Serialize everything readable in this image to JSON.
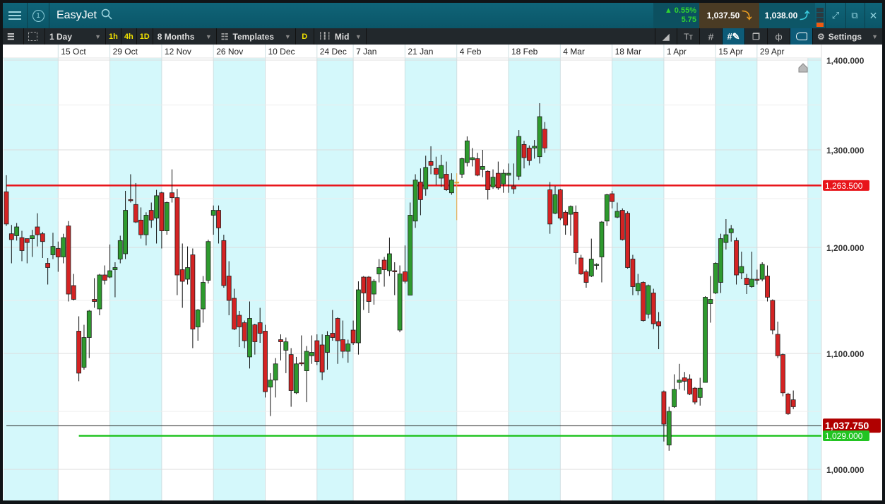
{
  "titlebar": {
    "title": "EasyJet",
    "instrument_number": "1",
    "change_pct": "▲ 0.55%",
    "change_abs": "5.75",
    "sell_price": "1,037.50",
    "buy_price": "1,038.00"
  },
  "toolbar": {
    "interval": "1 Day",
    "quick_intervals": [
      "1h",
      "4h",
      "1D"
    ],
    "range": "8 Months",
    "templates": "Templates",
    "d_button": "D",
    "price_type": "Mid",
    "settings": "Settings"
  },
  "colors": {
    "up": "#2e9a2e",
    "down": "#d42323",
    "unchanged": "#e8a23a",
    "resistance": "#e8141a",
    "support": "#22c422",
    "band": "#d4f8fb",
    "titlebar": "#0f6478",
    "toolbar": "#22282c"
  },
  "chart_data": {
    "type": "candlestick",
    "instrument": "EasyJet",
    "yscale": "log",
    "grid": true,
    "y_ticks": [
      1000,
      1100,
      1200,
      1300,
      1400
    ],
    "y_tick_labels": [
      "1,000.000",
      "1,100.000",
      "1,200.000",
      "1,300.000",
      "1,400.000"
    ],
    "x_ticks": [
      {
        "date": "2018-10-15",
        "label": "15 Oct"
      },
      {
        "date": "2018-10-29",
        "label": "29 Oct"
      },
      {
        "date": "2018-11-12",
        "label": "12 Nov"
      },
      {
        "date": "2018-11-26",
        "label": "26 Nov"
      },
      {
        "date": "2018-12-10",
        "label": "10 Dec"
      },
      {
        "date": "2018-12-24",
        "label": "24 Dec"
      },
      {
        "date": "2019-01-07",
        "label": "7 Jan"
      },
      {
        "date": "2019-01-21",
        "label": "21 Jan"
      },
      {
        "date": "2019-02-04",
        "label": "4 Feb"
      },
      {
        "date": "2019-02-18",
        "label": "18 Feb"
      },
      {
        "date": "2019-03-04",
        "label": "4 Mar"
      },
      {
        "date": "2019-03-18",
        "label": "18 Mar"
      },
      {
        "date": "2019-04-01",
        "label": "1 Apr"
      },
      {
        "date": "2019-04-15",
        "label": "15 Apr"
      },
      {
        "date": "2019-04-29",
        "label": "29 Apr"
      }
    ],
    "horizontal_lines": [
      {
        "value": 1263.5,
        "label": "1,263.500",
        "color": "#e8141a",
        "role": "resistance",
        "from_date": "2018-10-01"
      },
      {
        "value": 1037.75,
        "label": "1,037.750",
        "color": "#b00000",
        "role": "current-price",
        "from_date": "2018-10-01"
      },
      {
        "value": 1029.0,
        "label": "1,029.000",
        "color": "#22c422",
        "role": "support",
        "from_date": "2018-10-19"
      }
    ],
    "candles_format": [
      "date",
      "open",
      "high",
      "low",
      "close"
    ],
    "candles": [
      [
        "2018-10-01",
        1257,
        1274,
        1222,
        1224
      ],
      [
        "2018-10-02",
        1214,
        1223,
        1185,
        1208
      ],
      [
        "2018-10-03",
        1212,
        1225,
        1207,
        1221
      ],
      [
        "2018-10-04",
        1210,
        1217,
        1187,
        1197
      ],
      [
        "2018-10-05",
        1209,
        1209,
        1185,
        1205
      ],
      [
        "2018-10-08",
        1209,
        1218,
        1191,
        1212
      ],
      [
        "2018-10-09",
        1221,
        1235,
        1201,
        1213
      ],
      [
        "2018-10-10",
        1214,
        1216,
        1190,
        1206
      ],
      [
        "2018-10-11",
        1185,
        1190,
        1165,
        1181
      ],
      [
        "2018-10-12",
        1193,
        1215,
        1189,
        1201
      ],
      [
        "2018-10-15",
        1199,
        1206,
        1177,
        1191
      ],
      [
        "2018-10-16",
        1191,
        1214,
        1185,
        1210
      ],
      [
        "2018-10-17",
        1222,
        1227,
        1149,
        1156
      ],
      [
        "2018-10-18",
        1164,
        1175,
        1150,
        1151
      ],
      [
        "2018-10-19",
        1121,
        1135,
        1076,
        1083
      ],
      [
        "2018-10-22",
        1088,
        1127,
        1086,
        1115
      ],
      [
        "2018-10-23",
        1115,
        1141,
        1096,
        1140
      ],
      [
        "2018-10-24",
        1151,
        1171,
        1143,
        1149
      ],
      [
        "2018-10-25",
        1142,
        1175,
        1136,
        1174
      ],
      [
        "2018-10-26",
        1174,
        1183,
        1165,
        1169
      ],
      [
        "2018-10-29",
        1172,
        1203,
        1171,
        1178
      ],
      [
        "2018-10-30",
        1179,
        1186,
        1153,
        1181
      ],
      [
        "2018-10-31",
        1189,
        1212,
        1185,
        1207
      ],
      [
        "2018-11-01",
        1194,
        1258,
        1189,
        1238
      ],
      [
        "2018-11-02",
        1249,
        1275,
        1246,
        1248
      ],
      [
        "2018-11-05",
        1244,
        1266,
        1225,
        1226
      ],
      [
        "2018-11-06",
        1228,
        1241,
        1209,
        1213
      ],
      [
        "2018-11-07",
        1213,
        1236,
        1202,
        1233
      ],
      [
        "2018-11-08",
        1238,
        1246,
        1220,
        1228
      ],
      [
        "2018-11-09",
        1230,
        1259,
        1204,
        1253
      ],
      [
        "2018-11-12",
        1256,
        1257,
        1199,
        1217
      ],
      [
        "2018-11-13",
        1217,
        1247,
        1213,
        1246
      ],
      [
        "2018-11-14",
        1256,
        1280,
        1246,
        1251
      ],
      [
        "2018-11-15",
        1251,
        1260,
        1155,
        1174
      ],
      [
        "2018-11-16",
        1179,
        1204,
        1143,
        1168
      ],
      [
        "2018-11-19",
        1170,
        1201,
        1165,
        1181
      ],
      [
        "2018-11-20",
        1193,
        1199,
        1105,
        1123
      ],
      [
        "2018-11-21",
        1125,
        1142,
        1112,
        1141
      ],
      [
        "2018-11-22",
        1142,
        1173,
        1129,
        1167
      ],
      [
        "2018-11-23",
        1169,
        1208,
        1166,
        1206
      ],
      [
        "2018-11-26",
        1233,
        1243,
        1213,
        1238
      ],
      [
        "2018-11-27",
        1238,
        1243,
        1204,
        1220
      ],
      [
        "2018-11-28",
        1207,
        1213,
        1162,
        1164
      ],
      [
        "2018-11-29",
        1173,
        1187,
        1136,
        1150
      ],
      [
        "2018-11-30",
        1152,
        1161,
        1122,
        1123
      ],
      [
        "2018-12-03",
        1136,
        1140,
        1106,
        1125
      ],
      [
        "2018-12-04",
        1129,
        1131,
        1105,
        1112
      ],
      [
        "2018-12-05",
        1097,
        1149,
        1087,
        1133
      ],
      [
        "2018-12-06",
        1127,
        1128,
        1099,
        1111
      ],
      [
        "2018-12-07",
        1129,
        1143,
        1110,
        1119
      ],
      [
        "2018-12-10",
        1121,
        1127,
        1062,
        1067
      ],
      [
        "2018-12-11",
        1071,
        1083,
        1046,
        1077
      ],
      [
        "2018-12-12",
        1077,
        1096,
        1062,
        1091
      ],
      [
        "2018-12-13",
        1113,
        1118,
        1094,
        1111
      ],
      [
        "2018-12-14",
        1103,
        1115,
        1083,
        1111
      ],
      [
        "2018-12-17",
        1099,
        1105,
        1054,
        1068
      ],
      [
        "2018-12-18",
        1066,
        1097,
        1065,
        1091
      ],
      [
        "2018-12-19",
        1092,
        1117,
        1089,
        1091
      ],
      [
        "2018-12-20",
        1085,
        1107,
        1058,
        1102
      ],
      [
        "2018-12-21",
        1098,
        1117,
        1091,
        1101
      ],
      [
        "2018-12-24",
        1112,
        1118,
        1090,
        1093
      ],
      [
        "2018-12-27",
        1108,
        1118,
        1077,
        1084
      ],
      [
        "2018-12-28",
        1101,
        1121,
        1086,
        1117
      ],
      [
        "2018-12-31",
        1119,
        1141,
        1112,
        1115
      ],
      [
        "2019-01-02",
        1133,
        1134,
        1091,
        1112
      ],
      [
        "2019-01-03",
        1113,
        1131,
        1096,
        1102
      ],
      [
        "2019-01-04",
        1102,
        1113,
        1092,
        1109
      ],
      [
        "2019-01-07",
        1122,
        1131,
        1108,
        1110
      ],
      [
        "2019-01-08",
        1110,
        1168,
        1099,
        1160
      ],
      [
        "2019-01-09",
        1172,
        1173,
        1141,
        1157
      ],
      [
        "2019-01-10",
        1172,
        1173,
        1138,
        1149
      ],
      [
        "2019-01-11",
        1156,
        1170,
        1146,
        1168
      ],
      [
        "2019-01-14",
        1175,
        1189,
        1167,
        1181
      ],
      [
        "2019-01-15",
        1188,
        1191,
        1163,
        1179
      ],
      [
        "2019-01-16",
        1178,
        1210,
        1173,
        1194
      ],
      [
        "2019-01-17",
        1178,
        1186,
        1155,
        1177
      ],
      [
        "2019-01-18",
        1122,
        1183,
        1120,
        1175
      ],
      [
        "2019-01-21",
        1177,
        1202,
        1166,
        1168
      ],
      [
        "2019-01-22",
        1155,
        1246,
        1155,
        1233
      ],
      [
        "2019-01-23",
        1227,
        1275,
        1220,
        1269
      ],
      [
        "2019-01-24",
        1267,
        1281,
        1233,
        1249
      ],
      [
        "2019-01-25",
        1260,
        1294,
        1253,
        1282
      ],
      [
        "2019-01-28",
        1288,
        1304,
        1275,
        1284
      ],
      [
        "2019-01-29",
        1281,
        1293,
        1264,
        1275
      ],
      [
        "2019-01-30",
        1271,
        1295,
        1262,
        1284
      ],
      [
        "2019-01-31",
        1275,
        1288,
        1258,
        1259
      ],
      [
        "2019-02-01",
        1256,
        1276,
        1254,
        1269
      ],
      [
        "2019-02-04",
        1267,
        1276,
        1228,
        1267
      ],
      [
        "2019-02-05",
        1275,
        1292,
        1271,
        1291
      ],
      [
        "2019-02-06",
        1287,
        1315,
        1283,
        1310
      ],
      [
        "2019-02-07",
        1290,
        1302,
        1283,
        1292
      ],
      [
        "2019-02-08",
        1291,
        1297,
        1273,
        1274
      ],
      [
        "2019-02-11",
        1280,
        1300,
        1272,
        1283
      ],
      [
        "2019-02-12",
        1278,
        1279,
        1249,
        1259
      ],
      [
        "2019-02-13",
        1262,
        1280,
        1260,
        1272
      ],
      [
        "2019-02-14",
        1276,
        1288,
        1259,
        1261
      ],
      [
        "2019-02-15",
        1265,
        1280,
        1256,
        1276
      ],
      [
        "2019-02-18",
        1274,
        1286,
        1256,
        1276
      ],
      [
        "2019-02-19",
        1263,
        1286,
        1255,
        1260
      ],
      [
        "2019-02-20",
        1273,
        1322,
        1269,
        1315
      ],
      [
        "2019-02-21",
        1306,
        1310,
        1281,
        1292
      ],
      [
        "2019-02-22",
        1302,
        1305,
        1284,
        1289
      ],
      [
        "2019-02-25",
        1302,
        1311,
        1291,
        1304
      ],
      [
        "2019-02-26",
        1293,
        1352,
        1286,
        1337
      ],
      [
        "2019-02-27",
        1323,
        1331,
        1297,
        1302
      ],
      [
        "2019-02-28",
        1259,
        1267,
        1214,
        1224
      ],
      [
        "2019-03-01",
        1235,
        1263,
        1234,
        1254
      ],
      [
        "2019-03-04",
        1259,
        1260,
        1228,
        1230
      ],
      [
        "2019-03-05",
        1236,
        1238,
        1213,
        1223
      ],
      [
        "2019-03-06",
        1234,
        1243,
        1212,
        1242
      ],
      [
        "2019-03-07",
        1236,
        1243,
        1184,
        1195
      ],
      [
        "2019-03-08",
        1190,
        1193,
        1174,
        1175
      ],
      [
        "2019-03-11",
        1177,
        1179,
        1162,
        1167
      ],
      [
        "2019-03-12",
        1173,
        1209,
        1172,
        1189
      ],
      [
        "2019-03-13",
        1183,
        1185,
        1179,
        1184
      ],
      [
        "2019-03-14",
        1191,
        1227,
        1167,
        1226
      ],
      [
        "2019-03-15",
        1227,
        1255,
        1222,
        1254
      ],
      [
        "2019-03-18",
        1255,
        1258,
        1240,
        1247
      ],
      [
        "2019-03-19",
        1231,
        1246,
        1230,
        1237
      ],
      [
        "2019-03-20",
        1238,
        1240,
        1207,
        1208
      ],
      [
        "2019-03-21",
        1235,
        1237,
        1180,
        1181
      ],
      [
        "2019-03-22",
        1189,
        1193,
        1155,
        1163
      ],
      [
        "2019-03-25",
        1159,
        1175,
        1155,
        1166
      ],
      [
        "2019-03-26",
        1167,
        1168,
        1130,
        1131
      ],
      [
        "2019-03-27",
        1137,
        1165,
        1133,
        1164
      ],
      [
        "2019-03-28",
        1157,
        1161,
        1123,
        1128
      ],
      [
        "2019-03-29",
        1130,
        1139,
        1104,
        1126
      ],
      [
        "2019-04-01",
        1067,
        1068,
        1024,
        1039
      ],
      [
        "2019-04-02",
        1021,
        1054,
        1016,
        1050
      ],
      [
        "2019-04-03",
        1054,
        1082,
        1053,
        1069
      ],
      [
        "2019-04-04",
        1075,
        1091,
        1069,
        1077
      ],
      [
        "2019-04-05",
        1079,
        1084,
        1068,
        1076
      ],
      [
        "2019-04-08",
        1078,
        1082,
        1064,
        1065
      ],
      [
        "2019-04-09",
        1070,
        1071,
        1056,
        1058
      ],
      [
        "2019-04-10",
        1062,
        1079,
        1055,
        1070
      ],
      [
        "2019-04-11",
        1075,
        1154,
        1075,
        1153
      ],
      [
        "2019-04-12",
        1147,
        1173,
        1129,
        1151
      ],
      [
        "2019-04-15",
        1157,
        1186,
        1156,
        1185
      ],
      [
        "2019-04-16",
        1167,
        1214,
        1157,
        1209
      ],
      [
        "2019-04-17",
        1205,
        1229,
        1198,
        1213
      ],
      [
        "2019-04-18",
        1215,
        1223,
        1206,
        1219
      ],
      [
        "2019-04-23",
        1207,
        1210,
        1165,
        1174
      ],
      [
        "2019-04-24",
        1176,
        1196,
        1170,
        1182
      ],
      [
        "2019-04-25",
        1171,
        1175,
        1156,
        1165
      ],
      [
        "2019-04-26",
        1163,
        1196,
        1162,
        1170
      ],
      [
        "2019-04-29",
        1170,
        1179,
        1165,
        1169
      ],
      [
        "2019-04-30",
        1170,
        1186,
        1168,
        1184
      ],
      [
        "2019-05-01",
        1173,
        1183,
        1149,
        1153
      ],
      [
        "2019-05-02",
        1150,
        1151,
        1118,
        1122
      ],
      [
        "2019-05-03",
        1118,
        1130,
        1096,
        1098
      ],
      [
        "2019-05-07",
        1099,
        1100,
        1063,
        1066
      ],
      [
        "2019-05-08",
        1065,
        1066,
        1047,
        1048
      ],
      [
        "2019-05-09",
        1060,
        1068,
        1052,
        1054
      ]
    ]
  }
}
